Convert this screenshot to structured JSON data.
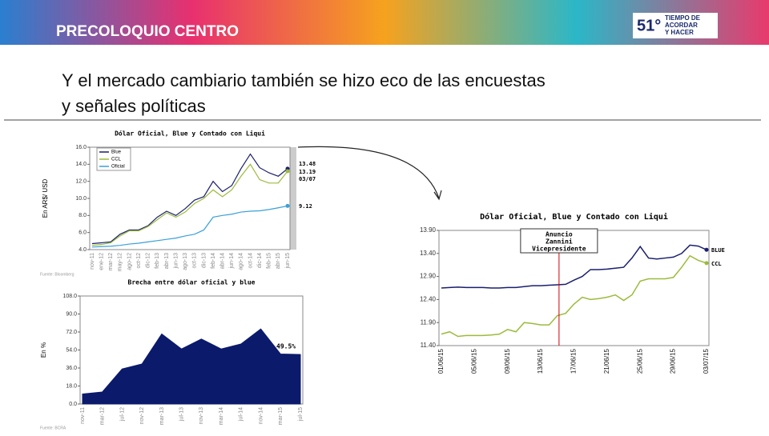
{
  "header": {
    "brand": "PRECOLOQUIO CENTRO",
    "logo_number": "51°",
    "logo_text": [
      "TIEMPO DE",
      "ACORDAR",
      "Y HACER"
    ],
    "title": [
      "Y el mercado cambiario también se hizo eco de las encuestas",
      "y señales políticas"
    ]
  },
  "chart_data": [
    {
      "type": "line",
      "title": "Dólar Oficial, Blue y Contado con Liqui",
      "y_label": "En AR$/ USD",
      "source": "Fuente: Bloomberg",
      "categories": [
        "nov-11",
        "ene-12",
        "mar-12",
        "may-12",
        "ago-12",
        "oct-12",
        "dic-12",
        "feb-13",
        "abr-13",
        "jun-13",
        "ago-13",
        "oct-13",
        "dic-13",
        "feb-14",
        "abr-14",
        "jun-14",
        "ago-14",
        "oct-14",
        "dic-14",
        "feb-15",
        "abr-15",
        "jun-15"
      ],
      "series": [
        {
          "name": "Blue",
          "color": "#1a1f6e",
          "values": [
            4.7,
            4.8,
            4.9,
            5.8,
            6.3,
            6.3,
            6.8,
            7.8,
            8.5,
            8.0,
            8.8,
            9.8,
            10.2,
            12.0,
            10.8,
            11.5,
            13.5,
            15.2,
            13.6,
            13.0,
            12.6,
            13.48
          ]
        },
        {
          "name": "CCL",
          "color": "#9bbb3c",
          "values": [
            4.5,
            4.6,
            4.8,
            5.6,
            6.2,
            6.2,
            6.7,
            7.5,
            8.3,
            7.8,
            8.4,
            9.4,
            10.0,
            11.0,
            10.2,
            11.0,
            12.6,
            14.0,
            12.2,
            11.8,
            11.8,
            13.19
          ]
        },
        {
          "name": "Oficial",
          "color": "#3aa0d8",
          "values": [
            4.3,
            4.35,
            4.4,
            4.5,
            4.65,
            4.75,
            4.9,
            5.05,
            5.2,
            5.35,
            5.6,
            5.8,
            6.3,
            7.8,
            8.0,
            8.15,
            8.4,
            8.5,
            8.55,
            8.7,
            8.9,
            9.12
          ]
        }
      ],
      "annotations": [
        "13.48",
        "13.19",
        "03/07",
        "9.12"
      ],
      "ylim": [
        4,
        16
      ],
      "yticks": [
        {
          "value": 4,
          "label": "4.0"
        },
        {
          "value": 6,
          "label": "6.0"
        },
        {
          "value": 8,
          "label": "8.0"
        },
        {
          "value": 10,
          "label": "10.0"
        },
        {
          "value": 12,
          "label": "12.0"
        },
        {
          "value": 14,
          "label": "14.0"
        },
        {
          "value": 16,
          "label": "16.0"
        }
      ],
      "legend": "top-left"
    },
    {
      "type": "area",
      "title": "Brecha entre dólar oficial y blue",
      "y_label": "En %",
      "source": "Fuente: BCRA",
      "color": "#0b1a6b",
      "categories": [
        "nov-11",
        "mar-12",
        "jul-12",
        "nov-12",
        "mar-13",
        "jul-13",
        "nov-13",
        "mar-14",
        "jul-14",
        "nov-14",
        "mar-15",
        "jul-15"
      ],
      "values": [
        10,
        12,
        35,
        40,
        70,
        55,
        65,
        55,
        60,
        75,
        50,
        49.5
      ],
      "annotations": [
        "49.5%"
      ],
      "ylim": [
        0,
        108
      ],
      "yticks": [
        {
          "value": 0,
          "label": "0.0"
        },
        {
          "value": 18,
          "label": "18.0"
        },
        {
          "value": 36,
          "label": "36.0"
        },
        {
          "value": 54,
          "label": "54.0"
        },
        {
          "value": 72,
          "label": "72.0"
        },
        {
          "value": 90,
          "label": "90.0"
        },
        {
          "value": 108,
          "label": "108.0"
        }
      ]
    },
    {
      "type": "line",
      "title": "Dólar Oficial, Blue y Contado con Liqui",
      "categories": [
        "01/06/15",
        null,
        null,
        null,
        "05/06/15",
        null,
        null,
        null,
        "09/06/15",
        null,
        null,
        null,
        "13/06/15",
        null,
        null,
        null,
        "17/06/15",
        null,
        null,
        null,
        "21/06/15",
        null,
        null,
        null,
        "25/06/15",
        null,
        null,
        null,
        "29/06/15",
        null,
        null,
        null,
        "03/07/15"
      ],
      "series": [
        {
          "name": "BLUE",
          "color": "#1a1f6e",
          "values": [
            12.65,
            12.66,
            12.67,
            12.66,
            12.66,
            12.66,
            12.65,
            12.65,
            12.66,
            12.66,
            12.68,
            12.7,
            12.7,
            12.71,
            12.72,
            12.73,
            12.82,
            12.9,
            13.05,
            13.05,
            13.06,
            13.08,
            13.1,
            13.3,
            13.55,
            13.3,
            13.28,
            13.3,
            13.32,
            13.4,
            13.58,
            13.56,
            13.48
          ]
        },
        {
          "name": "CCL",
          "color": "#9bbb3c",
          "values": [
            11.65,
            11.7,
            11.6,
            11.62,
            11.62,
            11.62,
            11.63,
            11.65,
            11.75,
            11.7,
            11.9,
            11.88,
            11.85,
            11.85,
            12.05,
            12.1,
            12.3,
            12.45,
            12.4,
            12.42,
            12.45,
            12.5,
            12.38,
            12.5,
            12.8,
            12.85,
            12.85,
            12.85,
            12.88,
            13.1,
            13.35,
            13.25,
            13.19
          ]
        }
      ],
      "annotations": [
        "Anuncio",
        "Zannini",
        "Vicepresidente"
      ],
      "ylim": [
        11.4,
        13.9
      ],
      "yticks": [
        {
          "value": 11.4,
          "label": "11.40"
        },
        {
          "value": 11.9,
          "label": "11.90"
        },
        {
          "value": 12.4,
          "label": "12.40"
        },
        {
          "value": 12.9,
          "label": "12.90"
        },
        {
          "value": 13.4,
          "label": "13.40"
        },
        {
          "value": 13.9,
          "label": "13.90"
        }
      ]
    }
  ]
}
